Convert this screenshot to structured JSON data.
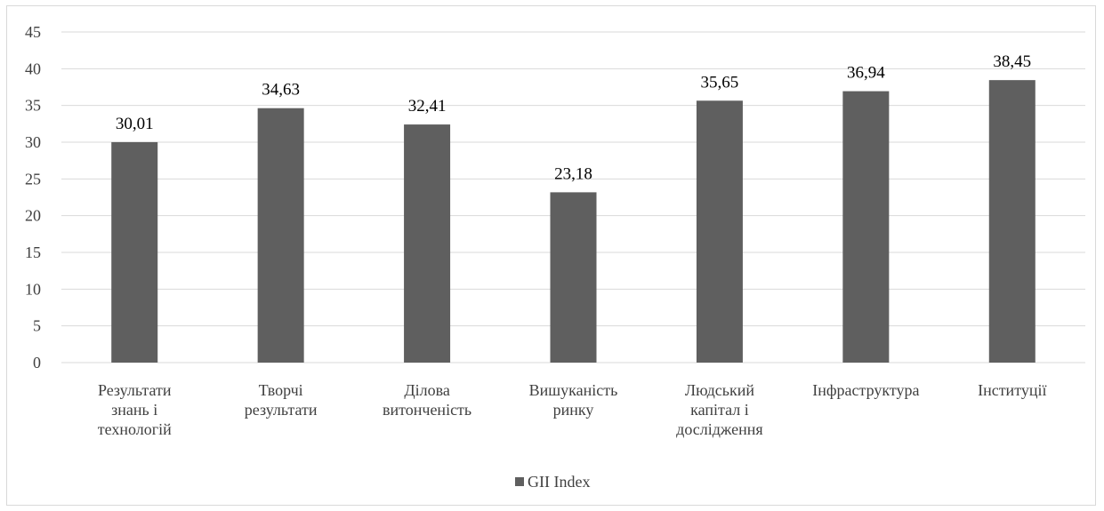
{
  "chart_data": {
    "type": "bar",
    "categories": [
      [
        "Результати",
        "знань і",
        "технологій"
      ],
      [
        "Творчі",
        "результати"
      ],
      [
        "Ділова",
        "витонченість"
      ],
      [
        "Вишуканість",
        "ринку"
      ],
      [
        "Людський",
        "капітал і",
        "дослідження"
      ],
      [
        "Інфраструктура"
      ],
      [
        "Інституції"
      ]
    ],
    "series": [
      {
        "name": "GII Index",
        "values": [
          30.01,
          34.63,
          32.41,
          23.18,
          35.65,
          36.94,
          38.45
        ],
        "labels": [
          "30,01",
          "34,63",
          "32,41",
          "23,18",
          "35,65",
          "36,94",
          "38,45"
        ],
        "color": "#5f5f5f"
      }
    ],
    "ylim": [
      0,
      45
    ],
    "yticks": [
      0,
      5,
      10,
      15,
      20,
      25,
      30,
      35,
      40,
      45
    ],
    "grid": true,
    "legend": "bottom-center",
    "gridColor": "#d9d9d9"
  }
}
